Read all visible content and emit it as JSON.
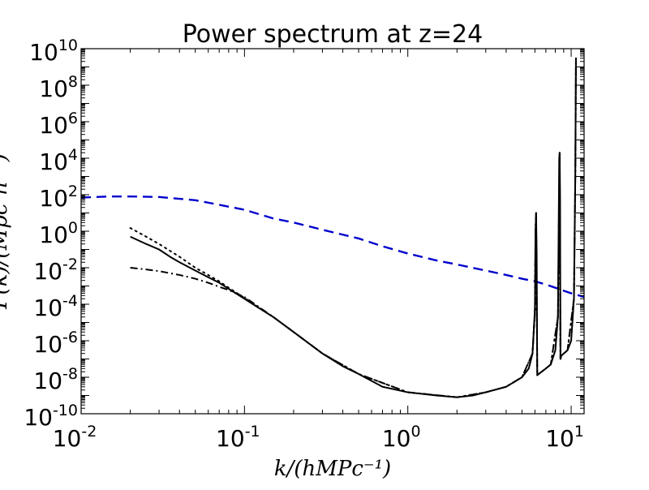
{
  "chart_data": {
    "type": "line",
    "title": "Power spectrum at z=24",
    "xlabel": "k/(hMPc⁻¹)",
    "ylabel": "P(k)/(Mpc³h⁻³)",
    "xscale": "log",
    "yscale": "log",
    "xlim": [
      0.01,
      12
    ],
    "ylim": [
      1e-10,
      10000000000.0
    ],
    "grid": false,
    "x_ticks": [
      {
        "value": 0.01,
        "base": "10",
        "exp": "-2"
      },
      {
        "value": 0.1,
        "base": "10",
        "exp": "-1"
      },
      {
        "value": 1,
        "base": "10",
        "exp": "0"
      },
      {
        "value": 10,
        "base": "10",
        "exp": "1"
      }
    ],
    "y_ticks": [
      {
        "value": 1e-10,
        "base": "10",
        "exp": "-10"
      },
      {
        "value": 1e-08,
        "base": "10",
        "exp": "-8"
      },
      {
        "value": 1e-06,
        "base": "10",
        "exp": "-6"
      },
      {
        "value": 0.0001,
        "base": "10",
        "exp": "-4"
      },
      {
        "value": 0.01,
        "base": "10",
        "exp": "-2"
      },
      {
        "value": 1,
        "base": "10",
        "exp": "0"
      },
      {
        "value": 100,
        "base": "10",
        "exp": "2"
      },
      {
        "value": 10000.0,
        "base": "10",
        "exp": "4"
      },
      {
        "value": 1000000.0,
        "base": "10",
        "exp": "6"
      },
      {
        "value": 100000000.0,
        "base": "10",
        "exp": "8"
      },
      {
        "value": 10000000000.0,
        "base": "10",
        "exp": "10"
      }
    ],
    "series": [
      {
        "color": "#0000cc",
        "style": "dashed",
        "x": [
          0.01,
          0.015,
          0.02,
          0.03,
          0.05,
          0.07,
          0.1,
          0.15,
          0.2,
          0.3,
          0.5,
          0.7,
          1,
          1.5,
          2,
          3,
          4,
          5,
          6,
          7,
          8,
          9,
          10,
          12
        ],
        "y": [
          70,
          80,
          80,
          75,
          50,
          28,
          15,
          5,
          3,
          1.2,
          0.4,
          0.15,
          0.06,
          0.025,
          0.015,
          0.007,
          0.004,
          0.0025,
          0.0018,
          0.0012,
          0.0008,
          0.00055,
          0.0004,
          0.00025
        ]
      },
      {
        "color": "#000000",
        "style": "solid",
        "x": [
          0.02,
          0.025,
          0.03,
          0.035,
          0.04,
          0.05,
          0.06,
          0.07,
          0.08,
          0.1,
          0.12,
          0.15,
          0.2,
          0.3,
          0.4,
          0.5,
          0.7,
          1,
          1.5,
          2,
          2.5,
          3,
          4,
          5,
          5.5,
          5.8,
          6,
          6.05,
          6.1,
          6.15,
          6.2,
          6.3,
          6.6,
          7,
          7.5,
          8,
          8.3,
          8.45,
          8.5,
          8.55,
          8.6,
          8.7,
          9,
          9.5,
          10,
          10.4,
          10.6,
          10.7
        ],
        "y": [
          0.5,
          0.2,
          0.1,
          0.04,
          0.02,
          0.007,
          0.003,
          0.0015,
          0.0007,
          0.0002,
          7e-05,
          2e-05,
          3e-06,
          2e-07,
          4e-08,
          1.5e-08,
          3e-09,
          1.5e-09,
          1e-09,
          8e-10,
          1e-09,
          1.5e-09,
          3e-09,
          1e-08,
          3e-08,
          2e-07,
          5e-05,
          1,
          10,
          0.05,
          1.3e-08,
          1.5e-08,
          2e-08,
          3e-08,
          5e-08,
          3e-07,
          2e-05,
          10000.0,
          20000,
          100,
          1e-07,
          1.5e-07,
          2e-07,
          3e-07,
          1e-06,
          0.0002,
          1000,
          3000000000.0
        ]
      },
      {
        "color": "#000000",
        "style": "dashdot",
        "x": [
          0.02,
          0.025,
          0.03,
          0.04,
          0.05,
          0.06,
          0.07,
          0.08,
          0.1,
          0.15,
          0.2,
          0.3,
          0.5,
          1,
          2,
          3,
          4,
          5,
          5.8,
          6,
          6.05,
          6.1,
          6.2,
          6.6,
          7.5,
          8.3,
          8.5,
          8.6,
          8.7,
          9.5,
          10.4,
          10.6,
          10.7
        ],
        "y": [
          0.01,
          0.008,
          0.0065,
          0.004,
          0.0025,
          0.0015,
          0.0009,
          0.0006,
          0.00025,
          2e-05,
          3e-06,
          2e-07,
          1.5e-08,
          1.5e-09,
          8e-10,
          1.5e-09,
          3e-09,
          1e-08,
          2e-07,
          5e-05,
          1,
          10,
          1.3e-08,
          2e-08,
          5e-08,
          2e-05,
          20000,
          1e-07,
          1.5e-07,
          3e-07,
          0.0002,
          1000,
          3000000000.0
        ]
      },
      {
        "color": "#000000",
        "style": "dotted",
        "x": [
          0.02,
          0.025,
          0.03,
          0.04,
          0.05,
          0.06,
          0.07,
          0.08,
          0.1,
          0.15,
          0.2,
          0.3,
          0.5,
          1,
          2,
          3,
          4,
          5,
          5.8,
          6,
          6.05,
          6.1,
          6.2,
          6.6,
          7.5,
          8.3,
          8.5,
          8.6,
          8.7,
          9.5,
          10.4,
          10.6,
          10.7
        ],
        "y": [
          1.5,
          0.5,
          0.2,
          0.04,
          0.01,
          0.004,
          0.0018,
          0.0008,
          0.00022,
          2e-05,
          3e-06,
          2e-07,
          1.5e-08,
          1.5e-09,
          8e-10,
          1.5e-09,
          3e-09,
          1e-08,
          2e-07,
          5e-05,
          1,
          10,
          1.3e-08,
          2e-08,
          5e-08,
          2e-05,
          20000,
          1e-07,
          1.5e-07,
          3e-07,
          0.0002,
          1000,
          3000000000.0
        ]
      }
    ]
  }
}
